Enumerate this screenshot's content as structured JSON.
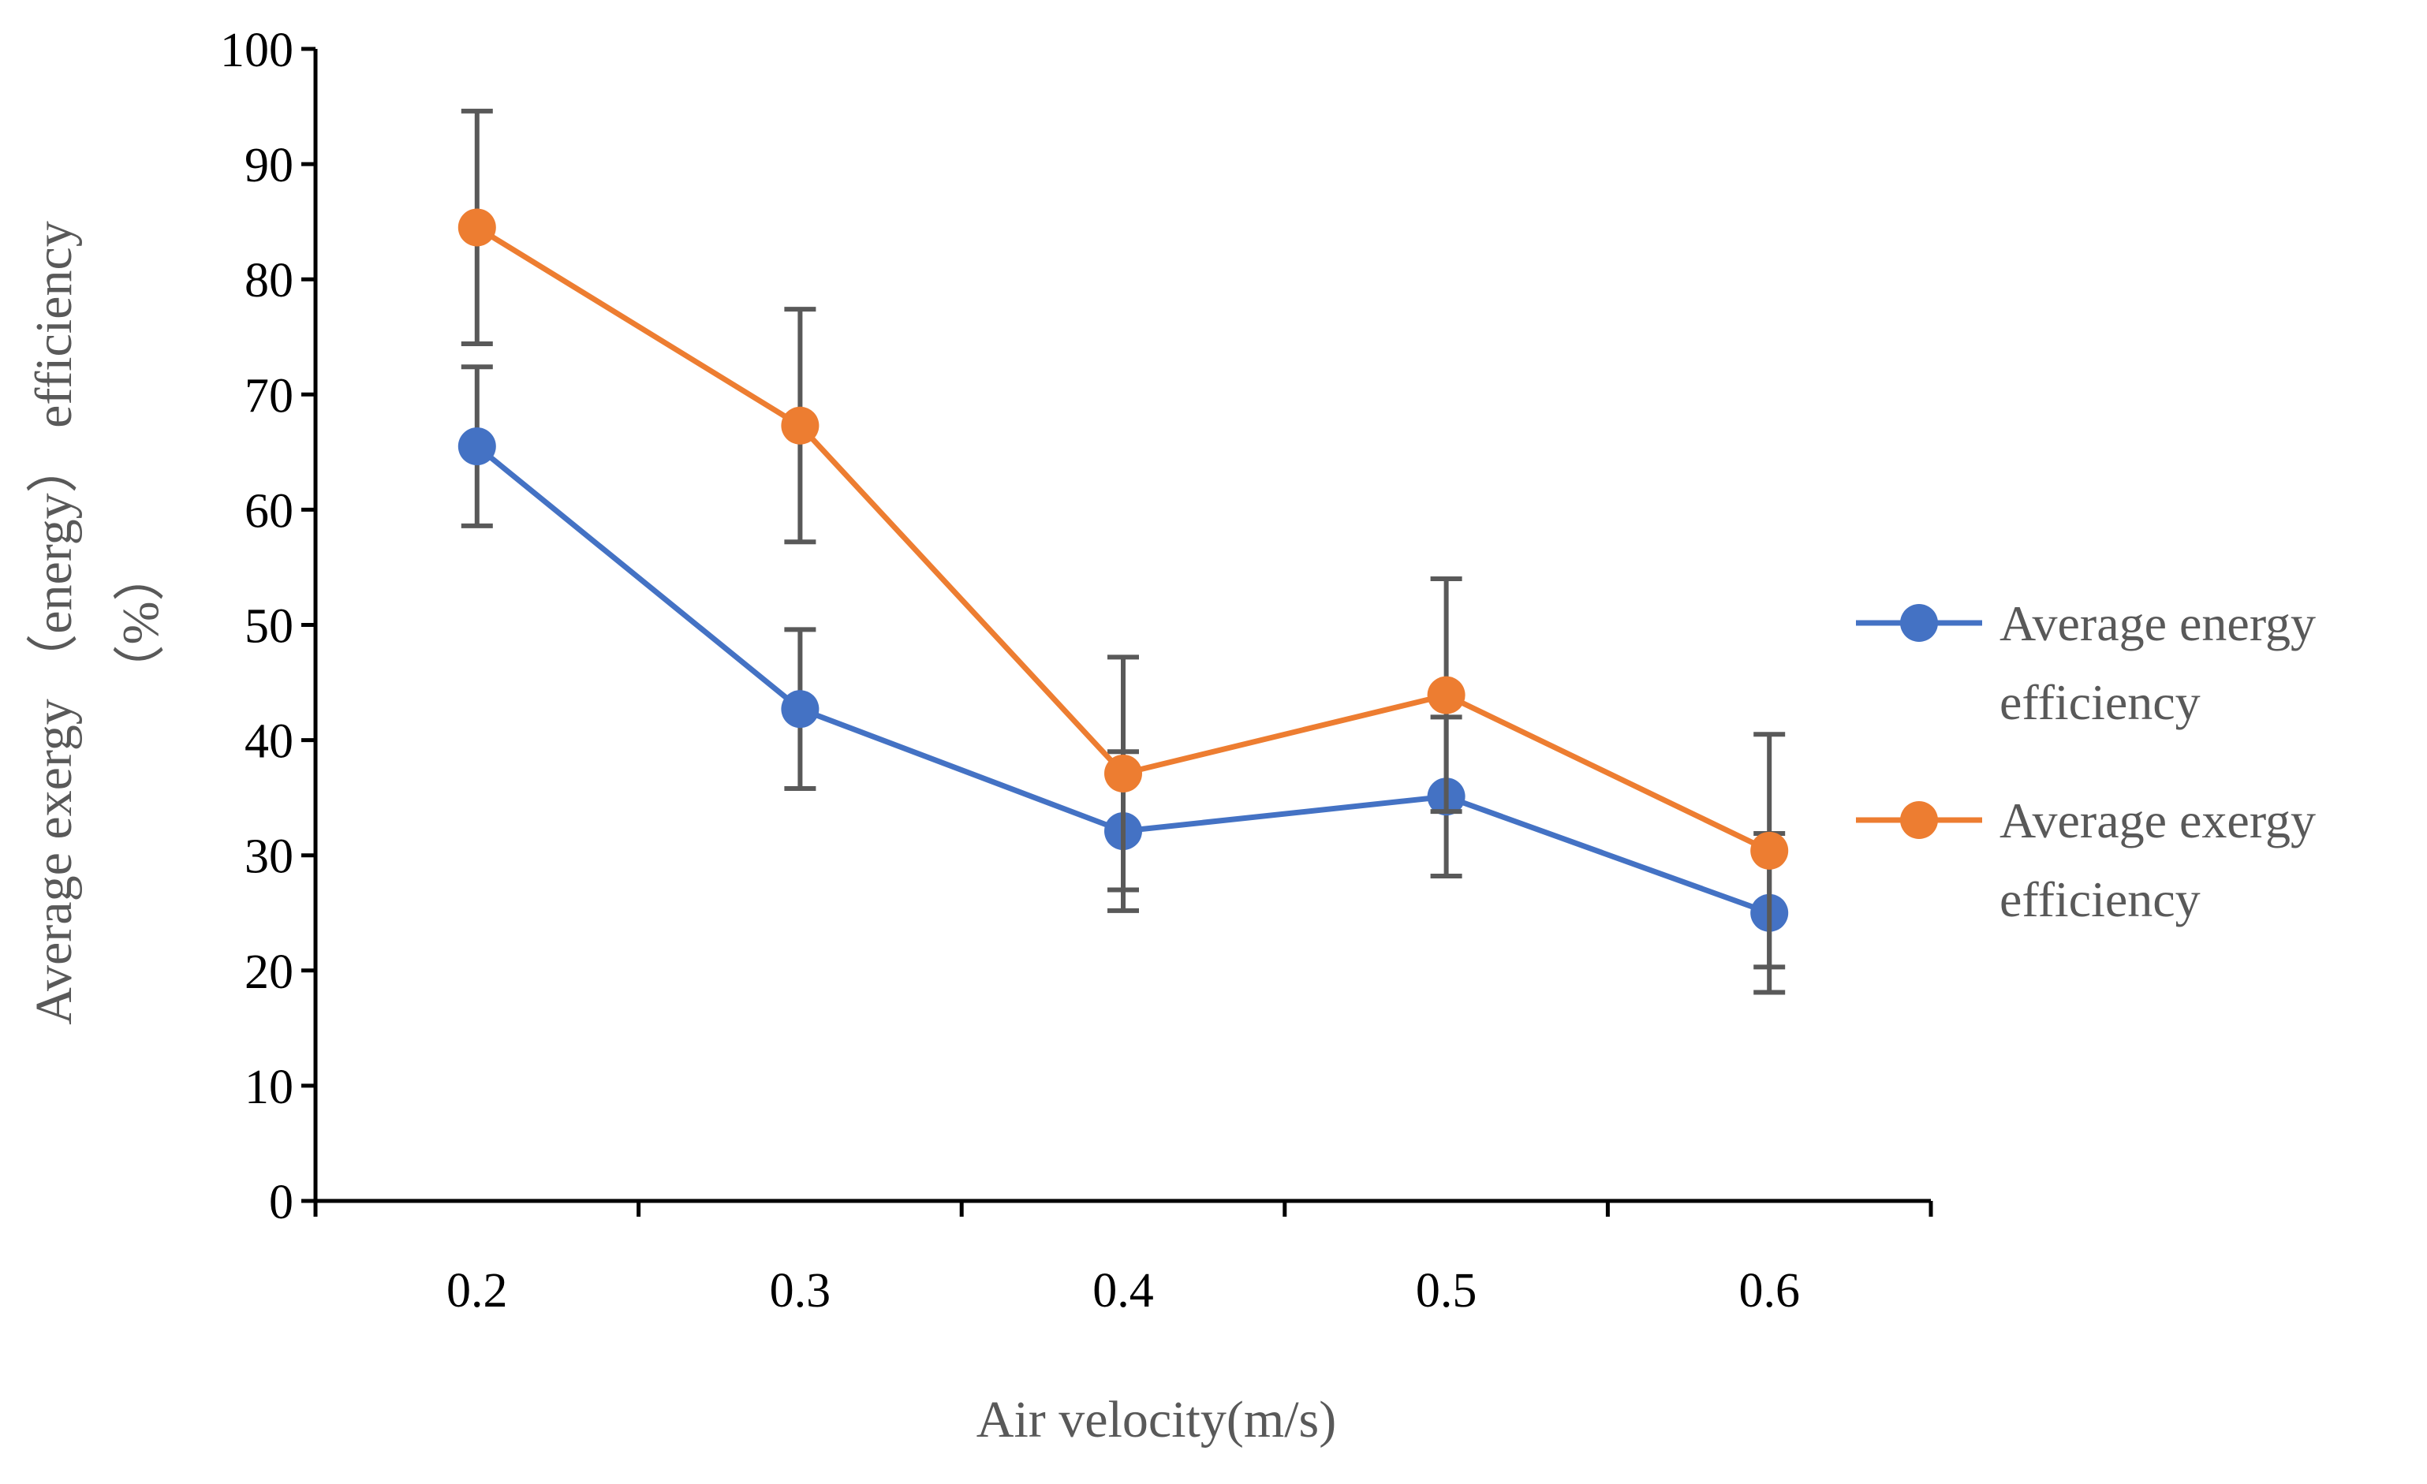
{
  "chart_data": {
    "type": "line",
    "title": "",
    "xlabel": "Air velocity(m/s)",
    "ylabel_lines": [
      "Average exergy （energy） efficiency",
      "（%）"
    ],
    "categories": [
      "0.2",
      "0.3",
      "0.4",
      "0.5",
      "0.6"
    ],
    "ylim": [
      0,
      100
    ],
    "yticks": [
      "0",
      "10",
      "20",
      "30",
      "40",
      "50",
      "60",
      "70",
      "80",
      "90",
      "100"
    ],
    "grid": false,
    "legend_position": "right",
    "series": [
      {
        "name_lines": [
          "Average energy",
          "efficiency"
        ],
        "color": "#4472C4",
        "values": [
          65.5,
          42.7,
          32.1,
          35.1,
          25.0
        ],
        "error": [
          6.9,
          6.9,
          6.9,
          6.9,
          6.9
        ]
      },
      {
        "name_lines": [
          "Average exergy",
          "efficiency"
        ],
        "color": "#ED7D31",
        "values": [
          84.5,
          67.3,
          37.1,
          43.9,
          30.4
        ],
        "error": [
          10.1,
          10.1,
          10.1,
          10.1,
          10.1
        ]
      }
    ],
    "error_bar_color": "#595959"
  }
}
